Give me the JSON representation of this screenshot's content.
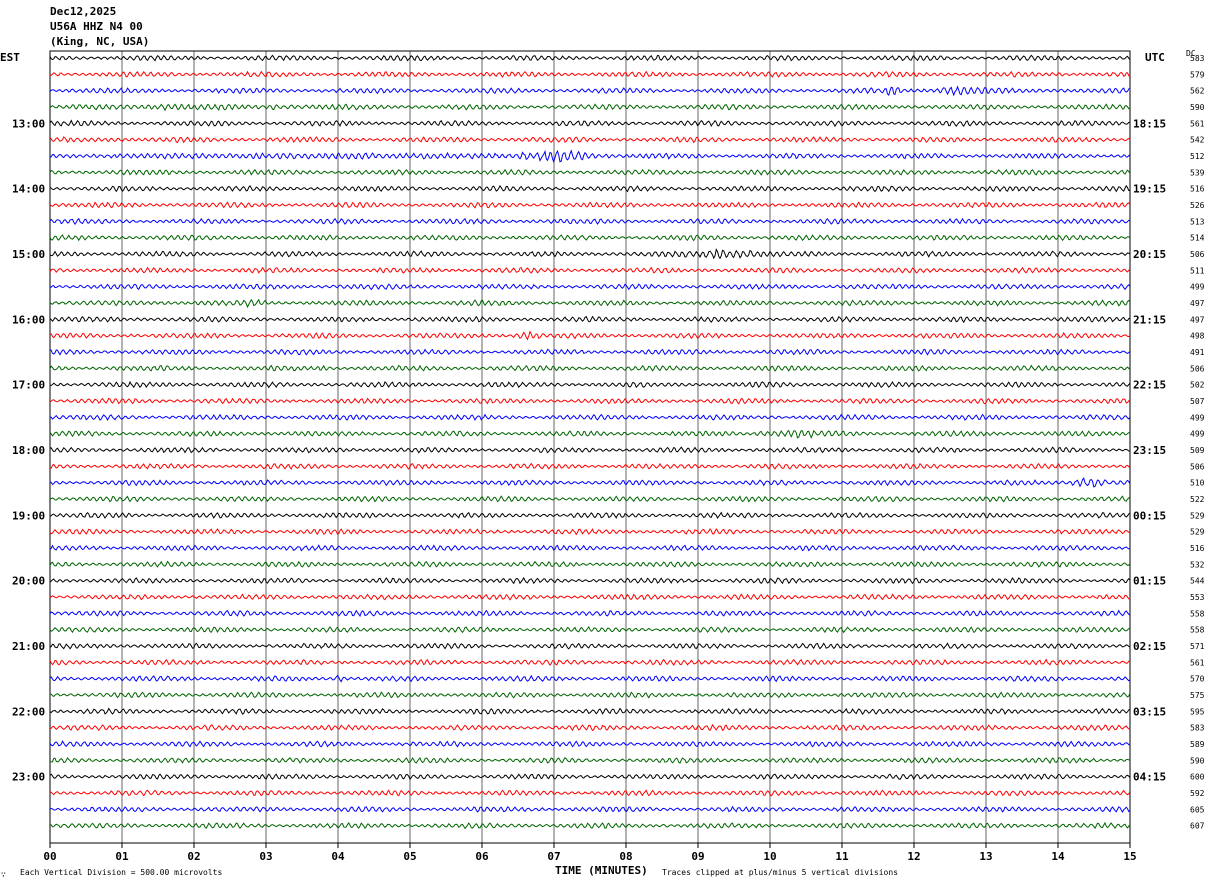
{
  "header": {
    "date": "Dec12,2025",
    "station": "U56A HHZ N4 00",
    "location": "(King, NC, USA)"
  },
  "left_tz": "EST",
  "right_tz": "UTC",
  "dc_header": "DC",
  "footer": {
    "scale_note": "Each Vertical Division =  500.00 microvolts",
    "xaxis_title": "TIME (MINUTES)",
    "clip_note": "Traces clipped at plus/minus 5 vertical divisions",
    "corner_mark": "∵"
  },
  "chart_data": {
    "type": "line",
    "title": "U56A HHZ N4 00",
    "xlabel": "TIME (MINUTES)",
    "ylabel": "",
    "xlim": [
      0,
      15
    ],
    "x_ticks": [
      "00",
      "01",
      "02",
      "03",
      "04",
      "05",
      "06",
      "07",
      "08",
      "09",
      "10",
      "11",
      "12",
      "13",
      "14",
      "15"
    ],
    "left_hour_labels": [
      {
        "label": "13:00",
        "trace": 4
      },
      {
        "label": "14:00",
        "trace": 8
      },
      {
        "label": "15:00",
        "trace": 12
      },
      {
        "label": "16:00",
        "trace": 16
      },
      {
        "label": "17:00",
        "trace": 20
      },
      {
        "label": "18:00",
        "trace": 24
      },
      {
        "label": "19:00",
        "trace": 28
      },
      {
        "label": "20:00",
        "trace": 32
      },
      {
        "label": "21:00",
        "trace": 36
      },
      {
        "label": "22:00",
        "trace": 40
      },
      {
        "label": "23:00",
        "trace": 44
      }
    ],
    "right_hour_labels": [
      {
        "label": "18:15",
        "trace": 4
      },
      {
        "label": "19:15",
        "trace": 8
      },
      {
        "label": "20:15",
        "trace": 12
      },
      {
        "label": "21:15",
        "trace": 16
      },
      {
        "label": "22:15",
        "trace": 20
      },
      {
        "label": "23:15",
        "trace": 24
      },
      {
        "label": "00:15",
        "trace": 28
      },
      {
        "label": "01:15",
        "trace": 32
      },
      {
        "label": "02:15",
        "trace": 36
      },
      {
        "label": "03:15",
        "trace": 40
      },
      {
        "label": "04:15",
        "trace": 44
      }
    ],
    "trace_colors": [
      "#000000",
      "#ff0000",
      "#0000ff",
      "#006400"
    ],
    "dc_offsets": [
      583,
      579,
      562,
      590,
      561,
      542,
      512,
      539,
      516,
      526,
      513,
      514,
      506,
      511,
      499,
      497,
      497,
      498,
      491,
      506,
      502,
      507,
      499,
      499,
      509,
      506,
      510,
      522,
      529,
      529,
      516,
      532,
      544,
      553,
      558,
      558,
      571,
      561,
      570,
      575,
      595,
      583,
      589,
      590,
      600,
      592,
      605,
      607
    ],
    "events": [
      {
        "trace": 2,
        "start_min": 10.6,
        "end_min": 15.0,
        "amp": 2.2
      },
      {
        "trace": 2,
        "start_min": 11.6,
        "end_min": 11.8,
        "amp": 6.0
      },
      {
        "trace": 2,
        "start_min": 12.3,
        "end_min": 13.1,
        "amp": 5.0
      },
      {
        "trace": 3,
        "start_min": 0.3,
        "end_min": 4.0,
        "amp": 3.0
      },
      {
        "trace": 5,
        "start_min": 0.0,
        "end_min": 1.5,
        "amp": 2.0
      },
      {
        "trace": 5,
        "start_min": 6.0,
        "end_min": 7.6,
        "amp": 2.2
      },
      {
        "trace": 6,
        "start_min": 0.0,
        "end_min": 8.2,
        "amp": 3.2
      },
      {
        "trace": 6,
        "start_min": 6.5,
        "end_min": 7.6,
        "amp": 6.0
      },
      {
        "trace": 12,
        "start_min": 8.5,
        "end_min": 10.2,
        "amp": 4.5
      },
      {
        "trace": 13,
        "start_min": 12.0,
        "end_min": 13.9,
        "amp": 1.8
      },
      {
        "trace": 15,
        "start_min": 2.6,
        "end_min": 3.0,
        "amp": 4.0
      },
      {
        "trace": 15,
        "start_min": 5.8,
        "end_min": 6.0,
        "amp": 3.8
      },
      {
        "trace": 15,
        "start_min": 1.5,
        "end_min": 1.7,
        "amp": 2.0
      },
      {
        "trace": 16,
        "start_min": 5.0,
        "end_min": 5.3,
        "amp": 2.5
      },
      {
        "trace": 16,
        "start_min": 7.2,
        "end_min": 7.6,
        "amp": 2.2
      },
      {
        "trace": 16,
        "start_min": 11.0,
        "end_min": 11.1,
        "amp": 2.5
      },
      {
        "trace": 17,
        "start_min": 6.4,
        "end_min": 6.9,
        "amp": 3.8
      },
      {
        "trace": 17,
        "start_min": 1.1,
        "end_min": 1.2,
        "amp": 2.5
      },
      {
        "trace": 18,
        "start_min": 10.2,
        "end_min": 10.4,
        "amp": 2.2
      },
      {
        "trace": 19,
        "start_min": 1.5,
        "end_min": 1.6,
        "amp": 3.0
      },
      {
        "trace": 19,
        "start_min": 3.7,
        "end_min": 3.9,
        "amp": 3.5
      },
      {
        "trace": 20,
        "start_min": 1.8,
        "end_min": 1.9,
        "amp": 2.0
      },
      {
        "trace": 23,
        "start_min": 9.8,
        "end_min": 11.0,
        "amp": 4.0
      },
      {
        "trace": 23,
        "start_min": 10.55,
        "end_min": 10.6,
        "amp": 6.0
      },
      {
        "trace": 25,
        "start_min": 6.3,
        "end_min": 6.35,
        "amp": 2.5
      },
      {
        "trace": 26,
        "start_min": 5.2,
        "end_min": 5.4,
        "amp": 2.5
      },
      {
        "trace": 26,
        "start_min": 14.2,
        "end_min": 14.7,
        "amp": 5.0
      },
      {
        "trace": 28,
        "start_min": 10.8,
        "end_min": 11.0,
        "amp": 2.5
      },
      {
        "trace": 31,
        "start_min": 5.9,
        "end_min": 6.0,
        "amp": 2.0
      },
      {
        "trace": 36,
        "start_min": 7.8,
        "end_min": 8.0,
        "amp": 2.0
      },
      {
        "trace": 38,
        "start_min": 3.9,
        "end_min": 4.1,
        "amp": 3.5
      },
      {
        "trace": 46,
        "start_min": 7.7,
        "end_min": 7.9,
        "amp": 4.0
      }
    ]
  }
}
